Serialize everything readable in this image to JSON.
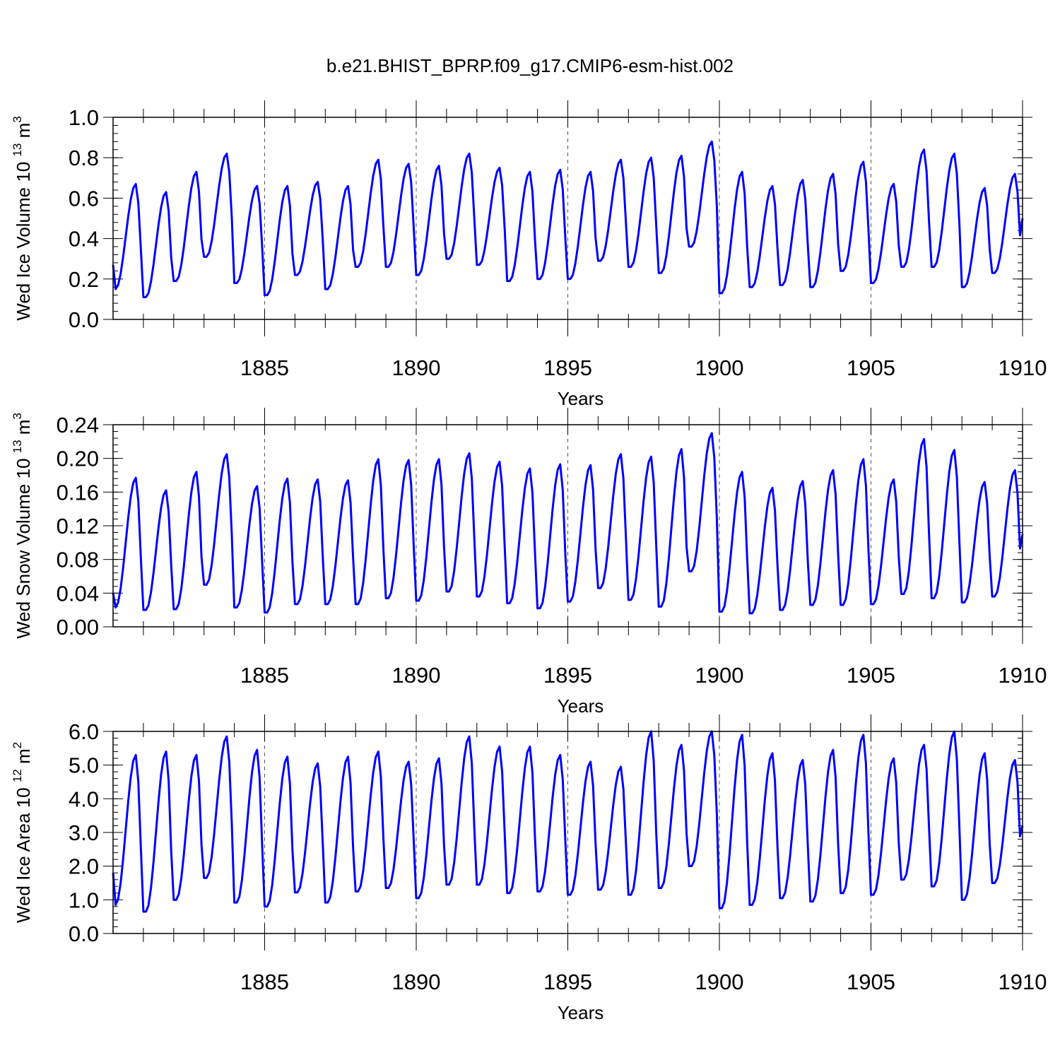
{
  "title": "b.e21.BHIST_BPRP.f09_g17.CMIP6-esm-hist.002",
  "line_color": "#0000ff",
  "chart_data": [
    {
      "type": "line",
      "ylabel": "Wed Ice Volume 10",
      "ylabel_exp": "13",
      "ylabel_unit": "m",
      "ylabel_unit_exp": "3",
      "xlabel": "Years",
      "xlim": [
        1880,
        1910
      ],
      "ylim": [
        0.0,
        1.0
      ],
      "ytick_values": [
        0.0,
        0.2,
        0.4,
        0.6,
        0.8,
        1.0
      ],
      "ytick_labels": [
        "0.0",
        "0.2",
        "0.4",
        "0.6",
        "0.8",
        "1.0"
      ],
      "xtick_values": [
        1885,
        1890,
        1895,
        1900,
        1905,
        1910
      ],
      "xtick_labels": [
        "1885",
        "1890",
        "1895",
        "1900",
        "1905",
        "1910"
      ],
      "series": [
        {
          "name": "Wed Ice Volume",
          "start_year": 1880.0,
          "mins": [
            0.15,
            0.11,
            0.19,
            0.31,
            0.18,
            0.12,
            0.22,
            0.15,
            0.26,
            0.26,
            0.22,
            0.3,
            0.27,
            0.19,
            0.2,
            0.2,
            0.29,
            0.26,
            0.23,
            0.36,
            0.13,
            0.16,
            0.17,
            0.16,
            0.24,
            0.18,
            0.26,
            0.26,
            0.16,
            0.23
          ],
          "maxs": [
            0.67,
            0.63,
            0.73,
            0.82,
            0.66,
            0.66,
            0.68,
            0.66,
            0.79,
            0.77,
            0.76,
            0.82,
            0.75,
            0.73,
            0.74,
            0.73,
            0.79,
            0.8,
            0.81,
            0.88,
            0.73,
            0.66,
            0.69,
            0.72,
            0.78,
            0.67,
            0.84,
            0.82,
            0.65,
            0.72
          ],
          "start_value": 0.27,
          "end_value": 0.5
        }
      ]
    },
    {
      "type": "line",
      "ylabel": "Wed Snow Volume 10",
      "ylabel_exp": "13",
      "ylabel_unit": "m",
      "ylabel_unit_exp": "3",
      "xlabel": "Years",
      "xlim": [
        1880,
        1910
      ],
      "ylim": [
        0.0,
        0.24
      ],
      "ytick_values": [
        0.0,
        0.04,
        0.08,
        0.12,
        0.16,
        0.2,
        0.24
      ],
      "ytick_labels": [
        "0.00",
        "0.04",
        "0.08",
        "0.12",
        "0.16",
        "0.20",
        "0.24"
      ],
      "xtick_values": [
        1885,
        1890,
        1895,
        1900,
        1905,
        1910
      ],
      "xtick_labels": [
        "1885",
        "1890",
        "1895",
        "1900",
        "1905",
        "1910"
      ],
      "series": [
        {
          "name": "Wed Snow Volume",
          "start_year": 1880.0,
          "mins": [
            0.023,
            0.02,
            0.021,
            0.05,
            0.023,
            0.017,
            0.027,
            0.027,
            0.027,
            0.034,
            0.031,
            0.042,
            0.036,
            0.028,
            0.022,
            0.03,
            0.046,
            0.032,
            0.024,
            0.066,
            0.018,
            0.016,
            0.02,
            0.026,
            0.026,
            0.027,
            0.039,
            0.034,
            0.029,
            0.036
          ],
          "maxs": [
            0.177,
            0.162,
            0.184,
            0.205,
            0.167,
            0.176,
            0.175,
            0.174,
            0.199,
            0.198,
            0.199,
            0.206,
            0.196,
            0.188,
            0.193,
            0.192,
            0.205,
            0.202,
            0.211,
            0.23,
            0.184,
            0.165,
            0.173,
            0.186,
            0.199,
            0.175,
            0.223,
            0.21,
            0.172,
            0.186
          ],
          "start_value": 0.04,
          "end_value": 0.11
        }
      ]
    },
    {
      "type": "line",
      "ylabel": "Wed Ice Area 10",
      "ylabel_exp": "12",
      "ylabel_unit": "m",
      "ylabel_unit_exp": "2",
      "xlabel": "Years",
      "xlim": [
        1880,
        1910
      ],
      "ylim": [
        0.0,
        6.0
      ],
      "ytick_values": [
        0.0,
        1.0,
        2.0,
        3.0,
        4.0,
        5.0,
        6.0
      ],
      "ytick_labels": [
        "0.0",
        "1.0",
        "2.0",
        "3.0",
        "4.0",
        "5.0",
        "6.0"
      ],
      "xtick_values": [
        1885,
        1890,
        1895,
        1900,
        1905,
        1910
      ],
      "xtick_labels": [
        "1885",
        "1890",
        "1895",
        "1900",
        "1905",
        "1910"
      ],
      "series": [
        {
          "name": "Wed Ice Area",
          "start_year": 1880.0,
          "mins": [
            0.85,
            0.65,
            1.0,
            1.65,
            0.92,
            0.8,
            1.22,
            0.92,
            1.25,
            1.35,
            1.05,
            1.45,
            1.45,
            1.2,
            1.25,
            1.15,
            1.3,
            1.15,
            1.35,
            2.0,
            0.75,
            0.85,
            1.05,
            0.95,
            1.2,
            1.15,
            1.6,
            1.4,
            1.0,
            1.5
          ],
          "maxs": [
            5.3,
            5.4,
            5.3,
            5.85,
            5.45,
            5.25,
            5.05,
            5.25,
            5.4,
            5.1,
            5.2,
            5.85,
            5.55,
            5.55,
            5.3,
            5.1,
            4.95,
            6.0,
            5.6,
            6.0,
            5.9,
            5.35,
            5.15,
            5.45,
            5.9,
            5.2,
            5.6,
            6.0,
            5.35,
            5.15
          ],
          "start_value": 1.8,
          "end_value": 3.2
        }
      ]
    }
  ]
}
